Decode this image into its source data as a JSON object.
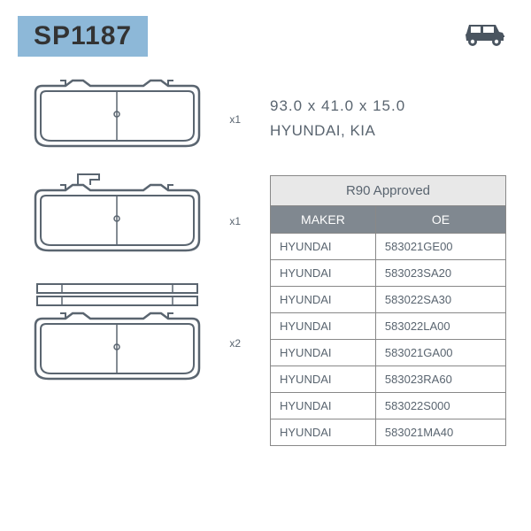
{
  "part_number": "SP1187",
  "dimensions": "93.0 x 41.0 x 15.0",
  "brands": "HYUNDAI, KIA",
  "approval_label": "R90 Approved",
  "table": {
    "columns": [
      "MAKER",
      "OE"
    ],
    "rows": [
      [
        "HYUNDAI",
        "583021GE00"
      ],
      [
        "HYUNDAI",
        "583023SA20"
      ],
      [
        "HYUNDAI",
        "583022SA30"
      ],
      [
        "HYUNDAI",
        "583022LA00"
      ],
      [
        "HYUNDAI",
        "583021GA00"
      ],
      [
        "HYUNDAI",
        "583023RA60"
      ],
      [
        "HYUNDAI",
        "583022S000"
      ],
      [
        "HYUNDAI",
        "583021MA40"
      ]
    ]
  },
  "quantities": [
    "x1",
    "x1",
    "x2"
  ],
  "colors": {
    "badge_bg": "#8db8d8",
    "table_header_bg": "#808890",
    "approval_bg": "#e8e8e8",
    "text": "#5a6570",
    "border": "#888888"
  }
}
